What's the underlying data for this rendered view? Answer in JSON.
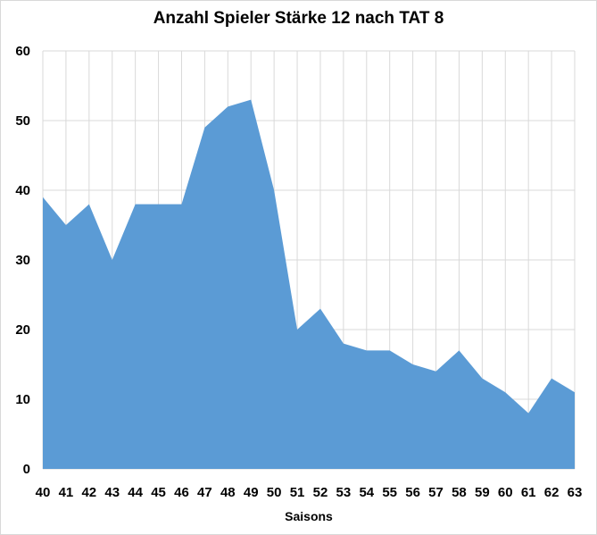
{
  "chart_data": {
    "type": "area",
    "title": "Anzahl Spieler Stärke 12 nach TAT 8",
    "xlabel": "Saisons",
    "ylabel": "",
    "x": [
      40,
      41,
      42,
      43,
      44,
      45,
      46,
      47,
      48,
      49,
      50,
      51,
      52,
      53,
      54,
      55,
      56,
      57,
      58,
      59,
      60,
      61,
      62,
      63
    ],
    "values": [
      39,
      35,
      38,
      30,
      38,
      38,
      38,
      49,
      52,
      53,
      40,
      20,
      23,
      18,
      17,
      17,
      15,
      14,
      17,
      13,
      11,
      8,
      13,
      11
    ],
    "ylim": [
      0,
      60
    ],
    "yticks": [
      0,
      10,
      20,
      30,
      40,
      50,
      60
    ],
    "grid": true,
    "legend": "none",
    "colors": {
      "fill": "#5b9bd5",
      "grid": "#d9d9d9"
    }
  }
}
